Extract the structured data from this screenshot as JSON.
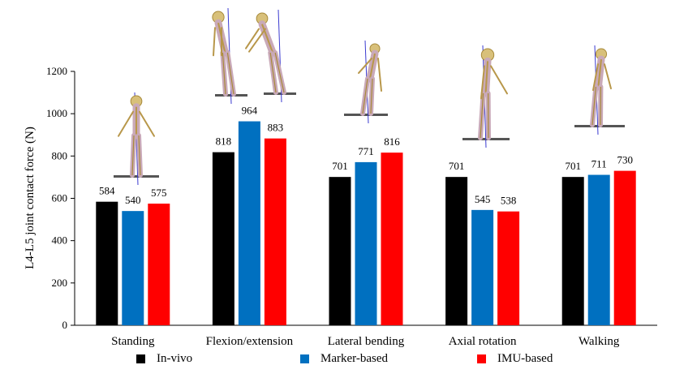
{
  "chart_data": {
    "type": "bar",
    "ylabel": "L4-L5 joint contact force (N)",
    "ylim": [
      0,
      1200
    ],
    "yticks": [
      0,
      200,
      400,
      600,
      800,
      1000,
      1200
    ],
    "categories": [
      "Standing",
      "Flexion/extension",
      "Lateral bending",
      "Axial rotation",
      "Walking"
    ],
    "series": [
      {
        "name": "In-vivo",
        "color": "#000000",
        "values": [
          584,
          818,
          701,
          701,
          701
        ]
      },
      {
        "name": "Marker-based",
        "color": "#0070C0",
        "values": [
          540,
          964,
          771,
          545,
          711
        ]
      },
      {
        "name": "IMU-based",
        "color": "#FF0000",
        "values": [
          575,
          883,
          816,
          538,
          730
        ]
      }
    ],
    "grid": false,
    "legend_position": "bottom"
  },
  "figures": [
    "skeleton-model-standing",
    "skeleton-model-flexion",
    "skeleton-model-extension",
    "skeleton-model-lateral-bending",
    "skeleton-model-axial-rotation",
    "skeleton-model-walking"
  ]
}
